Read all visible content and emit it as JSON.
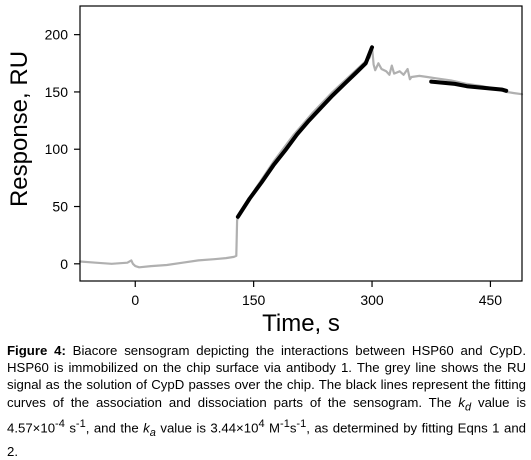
{
  "chart_data": {
    "type": "line",
    "xlabel": "Time, s",
    "ylabel": "Response, RU",
    "xlim": [
      -70,
      490
    ],
    "ylim": [
      -15,
      225
    ],
    "xticks": [
      0,
      150,
      300,
      450
    ],
    "yticks": [
      0,
      50,
      100,
      150,
      200
    ],
    "grid": false,
    "series": [
      {
        "color": "#b0b0b0",
        "style": "signal",
        "points": [
          [
            -70,
            2
          ],
          [
            -50,
            1
          ],
          [
            -30,
            0
          ],
          [
            -10,
            1
          ],
          [
            -5,
            3
          ],
          [
            -3,
            0
          ],
          [
            0,
            -2
          ],
          [
            5,
            -3
          ],
          [
            20,
            -2
          ],
          [
            40,
            -1
          ],
          [
            60,
            1
          ],
          [
            80,
            3
          ],
          [
            100,
            4
          ],
          [
            115,
            5
          ],
          [
            125,
            6
          ],
          [
            128,
            7
          ],
          [
            128.5,
            22
          ],
          [
            129,
            38
          ],
          [
            132,
            43
          ],
          [
            150,
            63
          ],
          [
            175,
            89
          ],
          [
            200,
            112
          ],
          [
            225,
            132
          ],
          [
            250,
            150
          ],
          [
            275,
            166
          ],
          [
            297,
            180
          ],
          [
            300,
            190
          ],
          [
            302,
            174
          ],
          [
            304,
            169
          ],
          [
            308,
            175
          ],
          [
            312,
            170
          ],
          [
            318,
            168
          ],
          [
            322,
            165
          ],
          [
            325,
            173
          ],
          [
            328,
            166
          ],
          [
            335,
            168
          ],
          [
            340,
            165
          ],
          [
            345,
            170
          ],
          [
            348,
            161
          ],
          [
            350,
            163
          ],
          [
            360,
            164
          ],
          [
            370,
            163
          ],
          [
            380,
            162
          ],
          [
            400,
            160
          ],
          [
            420,
            157
          ],
          [
            440,
            155
          ],
          [
            460,
            152
          ],
          [
            470,
            150
          ],
          [
            480,
            149
          ],
          [
            490,
            148
          ]
        ]
      },
      {
        "color": "#000000",
        "style": "fit-association",
        "points": [
          [
            130,
            41
          ],
          [
            145,
            57
          ],
          [
            160,
            71
          ],
          [
            175,
            86
          ],
          [
            190,
            99
          ],
          [
            205,
            113
          ],
          [
            220,
            125
          ],
          [
            235,
            136
          ],
          [
            250,
            147
          ],
          [
            265,
            157
          ],
          [
            280,
            167
          ],
          [
            292,
            175
          ],
          [
            300,
            189
          ]
        ]
      },
      {
        "color": "#000000",
        "style": "fit-dissociation",
        "points": [
          [
            375,
            159
          ],
          [
            390,
            158
          ],
          [
            405,
            157
          ],
          [
            420,
            155
          ],
          [
            435,
            154
          ],
          [
            450,
            153
          ],
          [
            465,
            152
          ],
          [
            470,
            151
          ]
        ]
      }
    ]
  },
  "caption": {
    "label": "Figure 4:",
    "text_1": " Biacore sensogram depicting the interactions between HSP60 and CypD. HSP60 is immobilized on the chip surface via antibody 1. The grey line shows the RU signal as the solution of CypD passes over the chip. The black lines represent the fitting curves of the association and dissociation parts of the sensogram. The ",
    "kd_symbol": "k",
    "kd_sub": "d",
    "text_2": " value is 4.57×10",
    "kd_exp": "-4",
    "text_3": " s",
    "kd_unit_exp": "-1",
    "text_4": ", and the ",
    "ka_symbol": "k",
    "ka_sub": "a",
    "text_5": " value is 3.44×10",
    "ka_exp": "4",
    "text_6": " M",
    "ka_unit_exp_m": "-1",
    "text_7": "s",
    "ka_unit_exp_s": "-1",
    "text_8": ", as determined by fitting Eqns 1 and 2."
  }
}
